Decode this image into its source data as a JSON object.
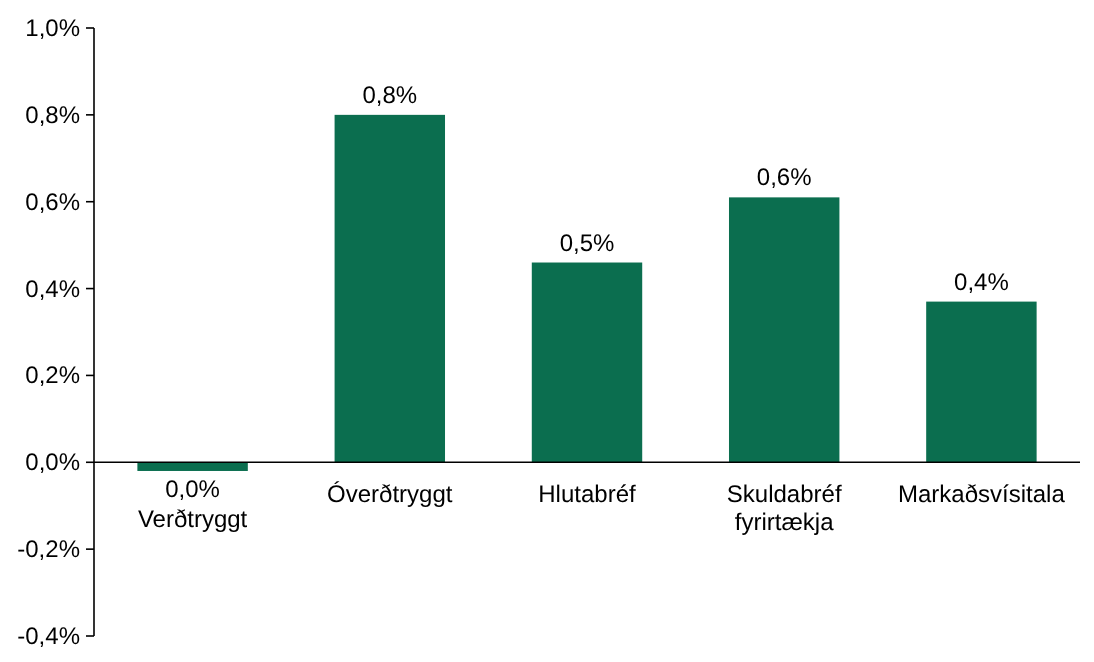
{
  "chart_data": {
    "type": "bar",
    "categories": [
      "Verðtryggt",
      "Óverðtryggt",
      "Hlutabréf",
      "Skuldabréf fyrirtækja",
      "Markaðsvísitala"
    ],
    "values": [
      -0.02,
      0.8,
      0.46,
      0.61,
      0.37
    ],
    "value_labels": [
      "0,0%",
      "0,8%",
      "0,5%",
      "0,6%",
      "0,4%"
    ],
    "color": "#0b6e4f",
    "ylim": [
      -0.4,
      1.0
    ],
    "yticks": [
      {
        "value": -0.4,
        "label": "-0,4%"
      },
      {
        "value": -0.2,
        "label": "-0,2%"
      },
      {
        "value": 0,
        "label": "0,0%"
      },
      {
        "value": 0.2,
        "label": "0,2%"
      },
      {
        "value": 0.4,
        "label": "0,4%"
      },
      {
        "value": 0.6,
        "label": "0,6%"
      },
      {
        "value": 0.8,
        "label": "0,8%"
      },
      {
        "value": 1.0,
        "label": "1,0%"
      }
    ],
    "grid": false
  }
}
